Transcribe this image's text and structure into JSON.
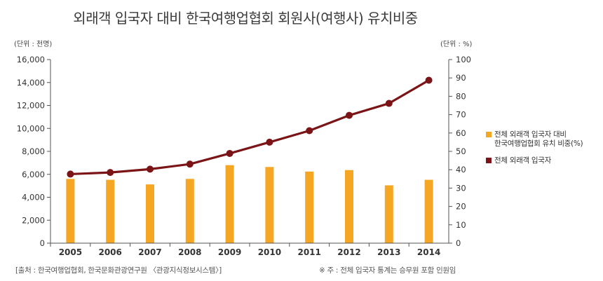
{
  "chart_data": {
    "type": "bar+line",
    "title": "외래객 입국자 대비 한국여행업협회 회원사(여행사) 유치비중",
    "categories": [
      "2005",
      "2006",
      "2007",
      "2008",
      "2009",
      "2010",
      "2011",
      "2012",
      "2013",
      "2014"
    ],
    "left_unit": "(단위 : 천명)",
    "right_unit": "(단위 : %)",
    "left_ticks": [
      "0",
      "2,000",
      "4,000",
      "6,000",
      "8,000",
      "10,000",
      "12,000",
      "14,000",
      "16,000"
    ],
    "right_ticks": [
      "0",
      "10",
      "20",
      "30",
      "40",
      "50",
      "60",
      "70",
      "80",
      "90",
      "100"
    ],
    "ylim_left": [
      0,
      16000
    ],
    "ylim_right": [
      0,
      100
    ],
    "series": [
      {
        "name": "전체 외래객 입국자 대비 한국여행업협회 유치 비중(%)",
        "type": "bar",
        "axis": "right",
        "color": "#f5a623",
        "values": [
          35,
          34.5,
          32,
          35,
          42.5,
          41.5,
          39,
          39.8,
          31.5,
          34.5
        ]
      },
      {
        "name": "전체 외래객 입국자",
        "type": "line",
        "axis": "left",
        "color": "#7b1416",
        "values": [
          6020,
          6160,
          6450,
          6890,
          7820,
          8800,
          9800,
          11140,
          12180,
          14200
        ]
      }
    ],
    "legend": {
      "position": "right",
      "bar_label_lines": [
        "전체 외래객 입국자 대비",
        "한국여행업협회 유치 비중(%)"
      ],
      "line_label": "전체 외래객 입국자"
    },
    "source": "[출처 : 한국여행업협회, 한국문화관광연구원 〈관광지식정보시스템〉]",
    "note": "※ 주 : 전체 입국자 통계는 승무원 포함 인원임"
  }
}
